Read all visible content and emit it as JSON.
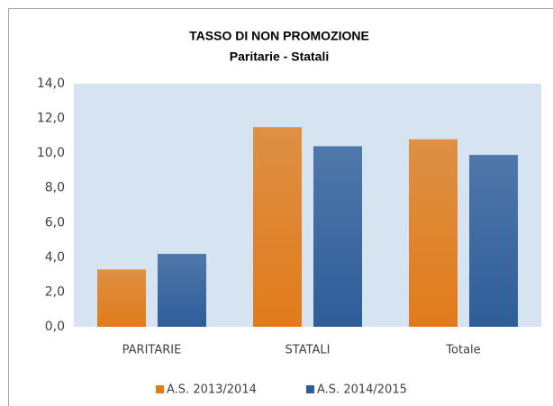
{
  "chart_data": {
    "type": "bar",
    "title": "TASSO DI NON PROMOZIONE",
    "subtitle": "Paritarie - Statali",
    "categories": [
      "PARITARIE",
      "STATALI",
      "Totale"
    ],
    "series": [
      {
        "name": "A.S. 2013/2014",
        "color": "#e07b1a",
        "values": [
          3.3,
          11.5,
          10.8
        ]
      },
      {
        "name": "A.S. 2014/2015",
        "color": "#2e5d99",
        "values": [
          4.2,
          10.4,
          9.9
        ]
      }
    ],
    "ylim": [
      0,
      14
    ],
    "yticks": [
      {
        "value": 0,
        "label": "0,0"
      },
      {
        "value": 2,
        "label": "2,0"
      },
      {
        "value": 4,
        "label": "4,0"
      },
      {
        "value": 6,
        "label": "6,0"
      },
      {
        "value": 8,
        "label": "8,0"
      },
      {
        "value": 10,
        "label": "10,0"
      },
      {
        "value": 12,
        "label": "12,0"
      },
      {
        "value": 14,
        "label": "14,0"
      }
    ],
    "grid": false,
    "legend": "bottom"
  }
}
